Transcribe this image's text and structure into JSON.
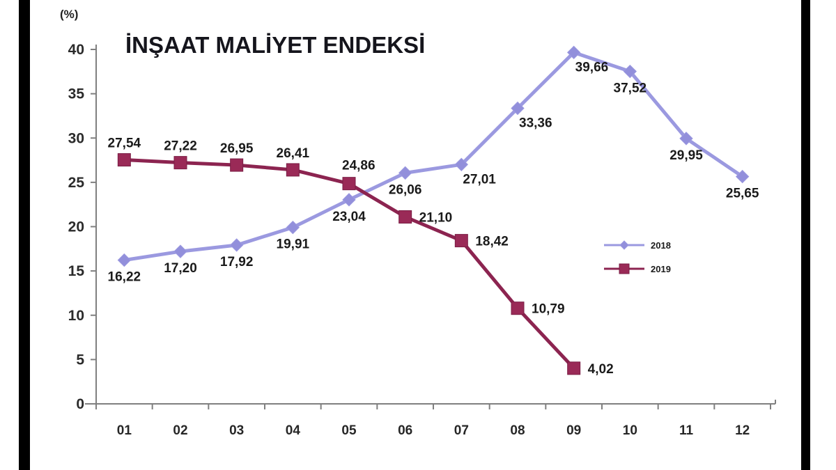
{
  "frame": {
    "background_color": "#ffffff",
    "left_bar_color": "#000000",
    "right_bar_color": "#000000"
  },
  "chart_data": {
    "type": "line",
    "title": "İNŞAAT MALİYET ENDEKSİ",
    "unit_label": "(%)",
    "xlabel": "",
    "ylabel": "(%)",
    "categories": [
      "01",
      "02",
      "03",
      "04",
      "05",
      "06",
      "07",
      "08",
      "09",
      "10",
      "11",
      "12"
    ],
    "ylim": [
      0,
      40
    ],
    "yticks": [
      0,
      5,
      10,
      15,
      20,
      25,
      30,
      35,
      40
    ],
    "grid": false,
    "legend_position": "middle-right",
    "axis_color": "#7f7f7f",
    "series": [
      {
        "name": "2018",
        "color": "#9b99e0",
        "marker": "diamond",
        "marker_fill": "#928fdb",
        "values": [
          16.22,
          17.2,
          17.92,
          19.91,
          23.04,
          26.06,
          27.01,
          33.36,
          39.66,
          37.52,
          29.95,
          25.65
        ],
        "labels": [
          "16,22",
          "17,20",
          "17,92",
          "19,91",
          "23,04",
          "26,06",
          "27,01",
          "33,36",
          "39,66",
          "37,52",
          "29,95",
          "25,65"
        ],
        "label_placement": [
          "below",
          "below",
          "below",
          "below",
          "below",
          "below",
          "below-right",
          "below-right",
          "below-right",
          "below",
          "below",
          "below"
        ]
      },
      {
        "name": "2019",
        "color": "#8c2450",
        "marker": "square",
        "marker_fill": "#9a2a57",
        "values": [
          27.54,
          27.22,
          26.95,
          26.41,
          24.86,
          21.1,
          18.42,
          10.79,
          4.02
        ],
        "labels": [
          "27,54",
          "27,22",
          "26,95",
          "26,41",
          "24,86",
          "21,10",
          "18,42",
          "10,79",
          "4,02"
        ],
        "label_placement": [
          "above",
          "above",
          "above",
          "above",
          "above-right",
          "right",
          "right",
          "right",
          "right"
        ]
      }
    ]
  }
}
